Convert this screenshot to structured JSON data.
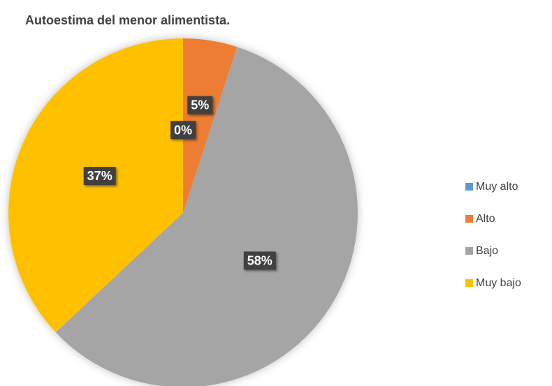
{
  "chart_data": {
    "type": "pie",
    "title": "Autoestima del menor alimentista.",
    "categories": [
      "Muy alto",
      "Alto",
      "Bajo",
      "Muy bajo"
    ],
    "values": [
      0,
      5,
      58,
      37
    ],
    "value_labels": [
      "0%",
      "5%",
      "58%",
      "37%"
    ],
    "colors": [
      "#5b9bd5",
      "#ed7d31",
      "#a5a5a5",
      "#ffc000"
    ],
    "legend": "right"
  }
}
